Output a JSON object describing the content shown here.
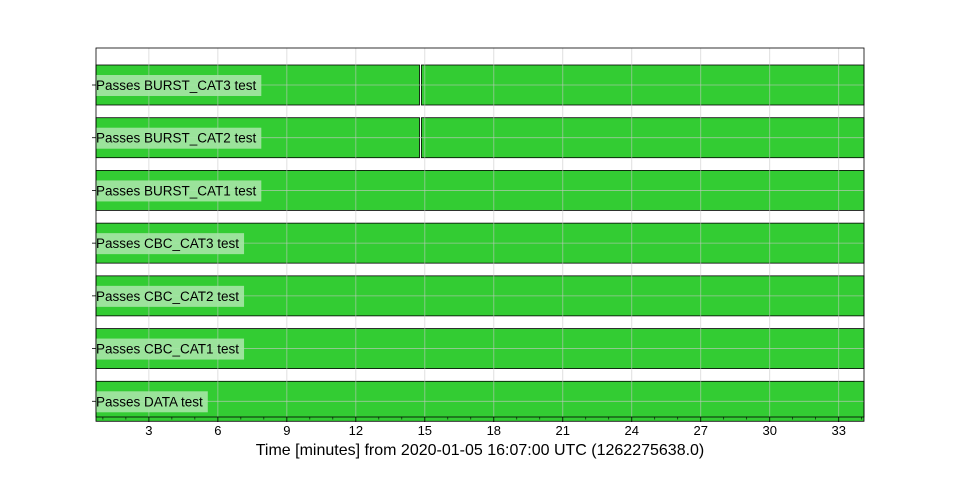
{
  "chart_data": {
    "type": "segments",
    "xlabel": "Time [minutes] from 2020-01-05 16:07:00 UTC (1262275638.0)",
    "xlim": [
      0.7,
      34.1
    ],
    "xticks": [
      3,
      6,
      9,
      12,
      15,
      18,
      21,
      24,
      27,
      30,
      33
    ],
    "x_minor_step": 1,
    "grid": true,
    "active_color": "#33cc33",
    "label_bg_color": "#a6e6a6",
    "flags": [
      {
        "label": "Passes BURST_CAT3 test",
        "active": [
          [
            0.7,
            14.77
          ],
          [
            14.85,
            34.1
          ]
        ]
      },
      {
        "label": "Passes BURST_CAT2 test",
        "active": [
          [
            0.7,
            14.77
          ],
          [
            14.85,
            34.1
          ]
        ]
      },
      {
        "label": "Passes BURST_CAT1 test",
        "active": [
          [
            0.7,
            34.1
          ]
        ]
      },
      {
        "label": "Passes CBC_CAT3 test",
        "active": [
          [
            0.7,
            34.1
          ]
        ]
      },
      {
        "label": "Passes CBC_CAT2 test",
        "active": [
          [
            0.7,
            34.1
          ]
        ]
      },
      {
        "label": "Passes CBC_CAT1 test",
        "active": [
          [
            0.7,
            34.1
          ]
        ]
      },
      {
        "label": "Passes DATA test",
        "active": [
          [
            0.7,
            34.1
          ]
        ]
      }
    ]
  }
}
